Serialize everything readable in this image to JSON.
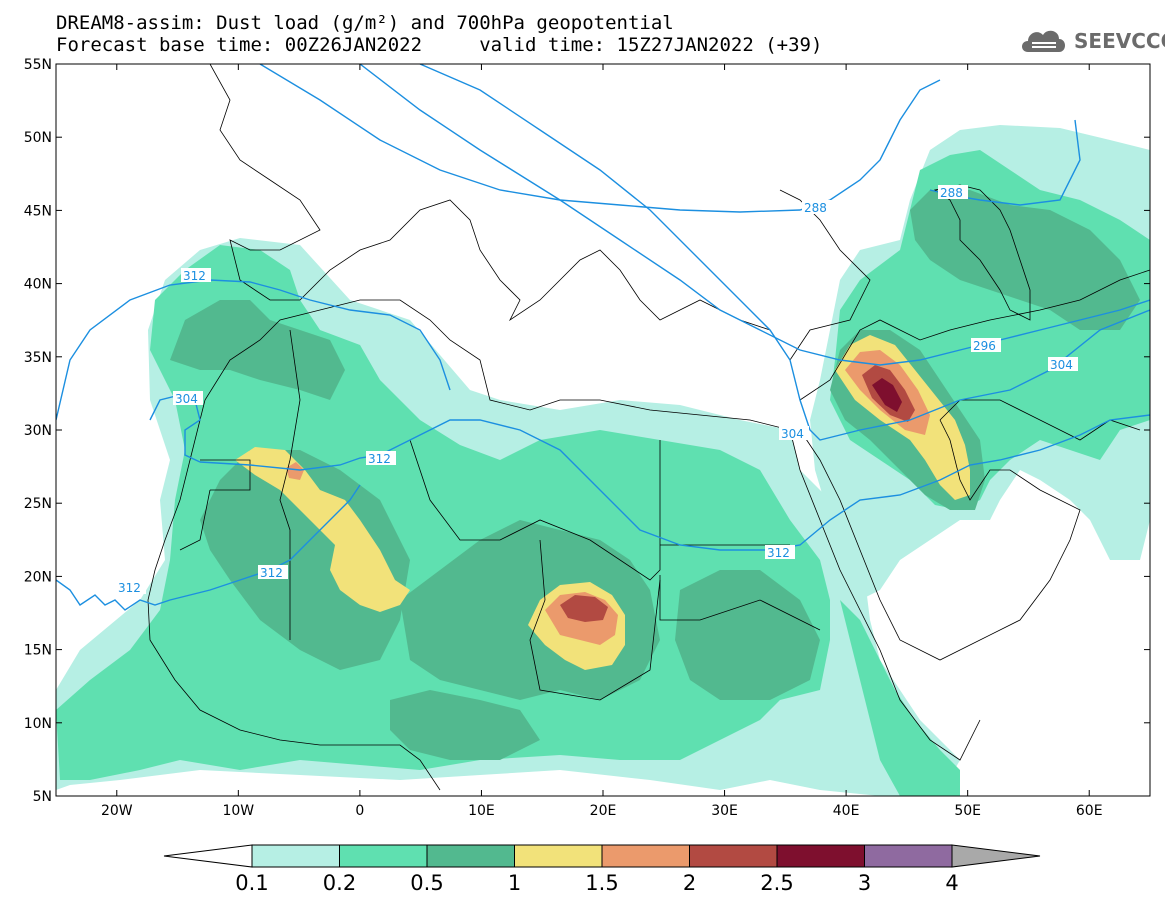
{
  "title": {
    "line1": "DREAM8-assim: Dust load (g/m²) and 700hPa geopotential",
    "line2": "Forecast base time: 00Z26JAN2022     valid time: 15Z27JAN2022 (+39)"
  },
  "logo": {
    "text": "SEEVCCC",
    "icon": "cloud-icon"
  },
  "axes": {
    "lat_labels": [
      "55N",
      "50N",
      "45N",
      "40N",
      "35N",
      "30N",
      "25N",
      "20N",
      "15N",
      "10N",
      "5N"
    ],
    "lon_labels": [
      "20W",
      "10W",
      "0",
      "10E",
      "20E",
      "30E",
      "40E",
      "50E",
      "60E"
    ],
    "lat_range": [
      5,
      55
    ],
    "lon_range": [
      -25,
      65
    ]
  },
  "colorbar": {
    "levels": [
      "0.1",
      "0.2",
      "0.5",
      "1",
      "1.5",
      "2",
      "2.5",
      "3",
      "4"
    ],
    "colors": [
      "#b6efe4",
      "#5fe0b0",
      "#52b98f",
      "#f2e27a",
      "#eb9a6c",
      "#b24a42",
      "#7e0f2e",
      "#8f6aa0"
    ],
    "under_color": "#ffffff",
    "over_color": "#a9a9a9"
  },
  "geopotential_labels": [
    {
      "text": "288"
    },
    {
      "text": "288"
    },
    {
      "text": "296"
    },
    {
      "text": "304"
    },
    {
      "text": "304"
    },
    {
      "text": "304"
    },
    {
      "text": "312"
    },
    {
      "text": "312"
    },
    {
      "text": "312"
    },
    {
      "text": "312"
    },
    {
      "text": "312"
    }
  ],
  "geopotential_color": "#1c8fe0"
}
